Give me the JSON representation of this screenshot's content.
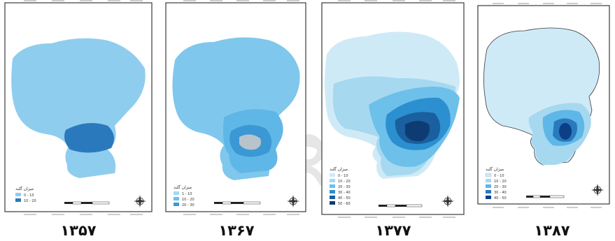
{
  "colors": {
    "frame_border": "#3a3a3a",
    "tick_gray": "#9a9a9a",
    "watermark": "#e6e6e6",
    "class_1": "#a6d8f0",
    "class_2": "#7fc7ec",
    "class_3": "#5eb7e6",
    "class_4": "#3b98d4",
    "class_5": "#1f6fb5",
    "class_6": "#0b3f86",
    "hole_gray": "#b8c4cc"
  },
  "icons": {
    "north_arrow": "compass-rose-icon",
    "scale_bar": "scale-bar-icon"
  },
  "maps": [
    {
      "year": "۱۳۵۷",
      "legend_title": "میزان گلبد",
      "legend_items": [
        {
          "label": "0 - 10",
          "color": "#8fcdee"
        },
        {
          "label": "10 - 20",
          "color": "#2b79bd"
        }
      ]
    },
    {
      "year": "۱۳۶۷",
      "legend_title": "میزان گلبد",
      "legend_items": [
        {
          "label": "1 - 10",
          "color": "#a6d8f0"
        },
        {
          "label": "10 - 20",
          "color": "#6cc0ea"
        },
        {
          "label": "20 - 30",
          "color": "#3b98d4"
        }
      ]
    },
    {
      "year": "۱۳۷۷",
      "legend_title": "میزان گلبد",
      "legend_items": [
        {
          "label": "0 - 10",
          "color": "#cfeaf7"
        },
        {
          "label": "10 - 20",
          "color": "#a6d8f0"
        },
        {
          "label": "20 - 30",
          "color": "#6cc0ea"
        },
        {
          "label": "30 - 40",
          "color": "#2b8fd0"
        },
        {
          "label": "40 - 50",
          "color": "#1a5f9f"
        },
        {
          "label": "50 - 60",
          "color": "#0d3c73"
        }
      ]
    },
    {
      "year": "۱۳۸۷",
      "legend_title": "میزان گلبد",
      "legend_items": [
        {
          "label": "0 - 10",
          "color": "#cfeaf7"
        },
        {
          "label": "10 - 20",
          "color": "#a6d8f0"
        },
        {
          "label": "20 - 30",
          "color": "#5eb7e6"
        },
        {
          "label": "30 - 40",
          "color": "#2b79bd"
        },
        {
          "label": "40 - 50",
          "color": "#0b3f86"
        }
      ]
    }
  ]
}
